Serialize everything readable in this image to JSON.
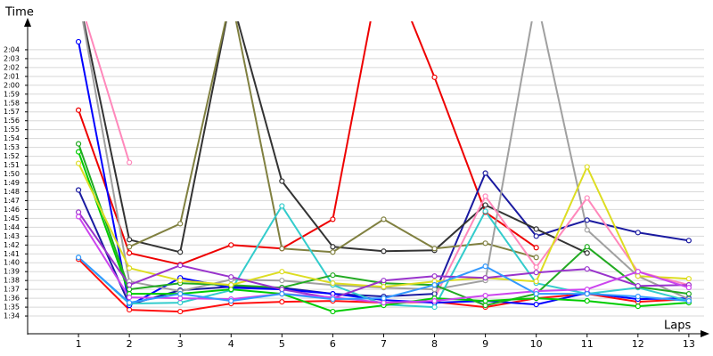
{
  "chart_data": {
    "type": "line",
    "y_label": "Time",
    "x_label": "Laps",
    "x": [
      1,
      2,
      3,
      4,
      5,
      6,
      7,
      8,
      9,
      10,
      11,
      12,
      13
    ],
    "xlim": [
      0,
      13.3
    ],
    "xticks": [
      1,
      2,
      3,
      4,
      5,
      6,
      7,
      8,
      9,
      10,
      11,
      12,
      13
    ],
    "ylim": [
      92,
      126.6
    ],
    "yticks": [
      {
        "value": 94,
        "label": "1:34"
      },
      {
        "value": 95,
        "label": "1:35"
      },
      {
        "value": 96,
        "label": "1:36"
      },
      {
        "value": 97,
        "label": "1:37"
      },
      {
        "value": 98,
        "label": "1:38"
      },
      {
        "value": 99,
        "label": "1:39"
      },
      {
        "value": 100,
        "label": "1:40"
      },
      {
        "value": 101,
        "label": "1:41"
      },
      {
        "value": 102,
        "label": "1:42"
      },
      {
        "value": 103,
        "label": "1:43"
      },
      {
        "value": 104,
        "label": "1:44"
      },
      {
        "value": 105,
        "label": "1:45"
      },
      {
        "value": 106,
        "label": "1:46"
      },
      {
        "value": 107,
        "label": "1:47"
      },
      {
        "value": 108,
        "label": "1:48"
      },
      {
        "value": 109,
        "label": "1:49"
      },
      {
        "value": 110,
        "label": "1:50"
      },
      {
        "value": 111,
        "label": "1:51"
      },
      {
        "value": 112,
        "label": "1:52"
      },
      {
        "value": 113,
        "label": "1:53"
      },
      {
        "value": 114,
        "label": "1:54"
      },
      {
        "value": 115,
        "label": "1:55"
      },
      {
        "value": 116,
        "label": "1:56"
      },
      {
        "value": 117,
        "label": "1:57"
      },
      {
        "value": 118,
        "label": "1:58"
      },
      {
        "value": 119,
        "label": "1:59"
      },
      {
        "value": 120,
        "label": "2:00"
      },
      {
        "value": 121,
        "label": "2:01"
      },
      {
        "value": 122,
        "label": "2:02"
      },
      {
        "value": 123,
        "label": "2:03"
      },
      {
        "value": 124,
        "label": "2:04"
      }
    ],
    "grid": true,
    "series": [
      {
        "color": "#ee0000",
        "values": [
          117.2,
          101.1,
          99.8,
          102.0,
          101.6,
          104.9,
          135,
          120.9,
          105.7,
          101.7,
          null,
          null,
          null
        ]
      },
      {
        "color": "#ff1010",
        "values": [
          100.4,
          94.7,
          94.5,
          95.4,
          95.6,
          95.7,
          95.5,
          95.6,
          95.0,
          96.0,
          96.5,
          95.6,
          95.9
        ]
      },
      {
        "color": "#1a1aa0",
        "values": [
          108.2,
          95.3,
          96.9,
          97.3,
          97.2,
          96.5,
          96.2,
          96.5,
          110.1,
          103.0,
          104.8,
          103.4,
          102.5
        ]
      },
      {
        "color": "#0000ff",
        "values": [
          124.9,
          95.2,
          98.3,
          97.2,
          97.0,
          96.5,
          95.8,
          95.5,
          95.7,
          95.3,
          96.6,
          95.9,
          96.0
        ]
      },
      {
        "color": "#333333",
        "values": [
          130,
          102.6,
          101.2,
          130,
          109.2,
          101.8,
          101.3,
          101.4,
          106.5,
          103.8,
          101.1,
          null,
          null
        ]
      },
      {
        "color": "#808040",
        "values": [
          null,
          101.8,
          104.4,
          130,
          101.6,
          101.2,
          104.9,
          101.6,
          102.2,
          100.6,
          null,
          null,
          null
        ]
      },
      {
        "color": "#a0a0a0",
        "values": [
          130,
          97.9,
          96.8,
          98.1,
          98.0,
          97.5,
          97.2,
          97.0,
          98.0,
          130,
          103.7,
          98.5,
          95.9
        ]
      },
      {
        "color": "#ff88bb",
        "values": [
          130,
          111.3,
          null,
          null,
          null,
          null,
          null,
          96.0,
          107.5,
          99.5,
          107.3,
          99.0,
          97.5
        ]
      },
      {
        "color": "#33cccc",
        "values": [
          100.6,
          95.4,
          95.5,
          96.9,
          106.4,
          97.5,
          95.3,
          95.0,
          105.8,
          97.7,
          96.5,
          97.2,
          95.7
        ]
      },
      {
        "color": "#22aa22",
        "values": [
          113.4,
          97.0,
          97.7,
          97.5,
          97.2,
          98.6,
          97.7,
          97.5,
          95.2,
          96.5,
          101.8,
          97.3,
          96.5
        ]
      },
      {
        "color": "#00cc00",
        "values": [
          112.5,
          96.5,
          96.5,
          97.0,
          96.5,
          94.5,
          95.2,
          96.0,
          95.7,
          96.0,
          95.7,
          95.1,
          95.5
        ]
      },
      {
        "color": "#dddd22",
        "values": [
          111.2,
          99.4,
          98.0,
          97.5,
          99.0,
          97.7,
          97.3,
          97.9,
          98.3,
          97.9,
          110.8,
          98.5,
          98.2
        ]
      },
      {
        "color": "#9933cc",
        "values": [
          105.7,
          97.5,
          99.7,
          98.4,
          97.0,
          96.0,
          98.0,
          98.5,
          98.3,
          98.9,
          99.3,
          97.4,
          97.5
        ]
      },
      {
        "color": "#cc44ee",
        "values": [
          105.2,
          96.1,
          96.0,
          95.9,
          96.5,
          96.1,
          95.5,
          95.7,
          96.3,
          96.8,
          97.0,
          99.0,
          97.2
        ]
      },
      {
        "color": "#3399ff",
        "values": [
          100.6,
          95.5,
          96.5,
          95.7,
          96.5,
          95.9,
          96.0,
          97.5,
          99.6,
          96.5,
          96.5,
          96.2,
          95.7
        ]
      }
    ]
  }
}
